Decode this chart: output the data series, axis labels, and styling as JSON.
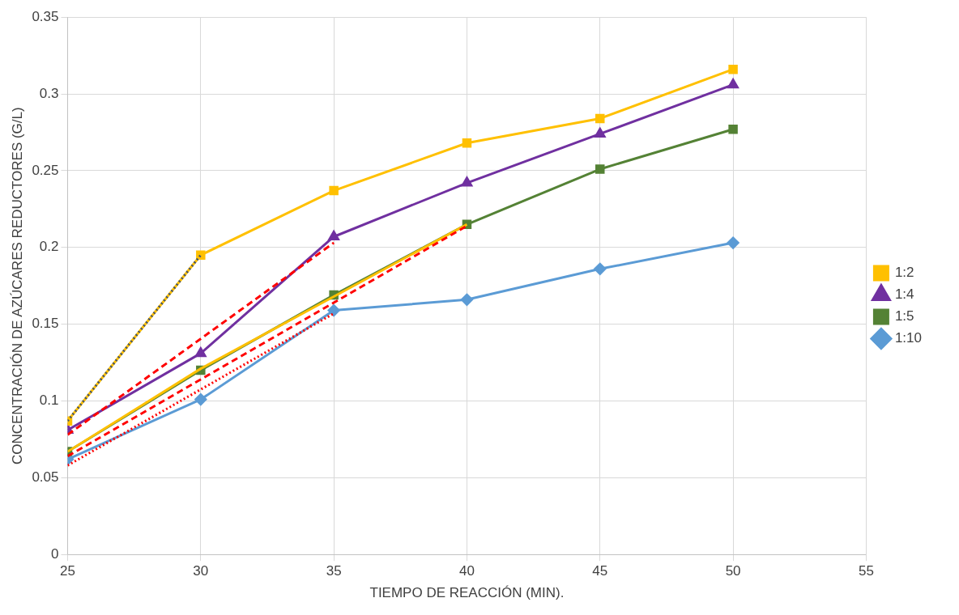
{
  "chart_data": {
    "type": "line",
    "xlabel": "TIEMPO DE REACCIÓN (MIN).",
    "ylabel": "CONCENTRACIÓN DE AZÚCARES REDUCTORES (G/L)",
    "x": [
      25,
      30,
      35,
      40,
      45,
      50
    ],
    "xlim": [
      25,
      55
    ],
    "xticks": [
      25,
      30,
      35,
      40,
      45,
      50,
      55
    ],
    "ylim": [
      0,
      0.35
    ],
    "yticks": [
      0,
      0.05,
      0.1,
      0.15,
      0.2,
      0.25,
      0.3,
      0.35
    ],
    "grid": true,
    "legend": "right",
    "line_style": "solid",
    "series": [
      {
        "name": "1:2",
        "color": "#ffc000",
        "marker": "square",
        "values": [
          0.087,
          0.195,
          0.237,
          0.268,
          0.284,
          0.316
        ]
      },
      {
        "name": "1:4",
        "color": "#7030a0",
        "marker": "triangle",
        "values": [
          0.081,
          0.131,
          0.207,
          0.242,
          0.274,
          0.306
        ]
      },
      {
        "name": "1:5",
        "color": "#548235",
        "marker": "square",
        "values": [
          0.067,
          0.12,
          0.169,
          0.215,
          0.251,
          0.277
        ]
      },
      {
        "name": "1:10",
        "color": "#5b9bd5",
        "marker": "diamond",
        "values": [
          0.062,
          0.101,
          0.159,
          0.166,
          0.186,
          0.203
        ]
      },
      {
        "type": "line",
        "color": "#44546a",
        "marker": "none",
        "line_style": "dotted",
        "x": [
          25,
          30
        ],
        "values": [
          0.087,
          0.195
        ]
      },
      {
        "type": "line",
        "color": "#ff0000",
        "marker": "none",
        "line_style": "dashed",
        "x": [
          25,
          35
        ],
        "values": [
          0.078,
          0.203
        ]
      },
      {
        "type": "line",
        "color": "#ff0000",
        "marker": "none",
        "line_style": "dashed",
        "x": [
          25,
          40
        ],
        "values": [
          0.064,
          0.214
        ]
      },
      {
        "type": "line",
        "color": "#ffc000",
        "marker": "none",
        "line_style": "solid",
        "x": [
          25,
          30,
          35,
          40
        ],
        "values": [
          0.067,
          0.121,
          0.168,
          0.215
        ]
      },
      {
        "type": "line",
        "color": "#ff0000",
        "marker": "none",
        "line_style": "dotted",
        "x": [
          25,
          35
        ],
        "values": [
          0.058,
          0.157
        ]
      }
    ]
  }
}
